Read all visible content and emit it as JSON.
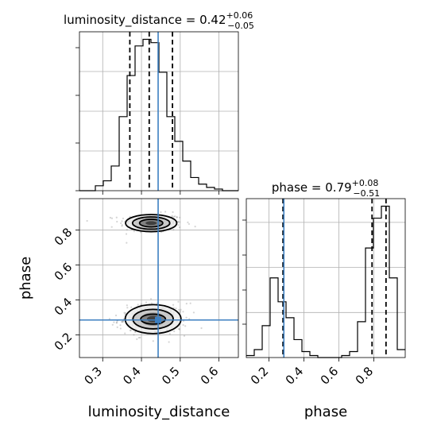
{
  "chart_data": {
    "type": "corner",
    "parameters": [
      "luminosity_distance",
      "phase"
    ],
    "colors": {
      "truth": "#3d7fc1",
      "histogram": "#000000",
      "density": "#000000",
      "scatter": "#888888"
    },
    "titles": {
      "luminosity_distance": {
        "prefix": "luminosity_distance = ",
        "value": "0.42",
        "plus": "+0.06",
        "minus": "−0.05"
      },
      "phase": {
        "prefix": "phase = ",
        "value": "0.79",
        "plus": "+0.08",
        "minus": "−0.51"
      }
    },
    "axis_labels": {
      "x_left": "luminosity_distance",
      "x_right": "phase",
      "y_left": "phase"
    },
    "luminosity_distance_ticks": [
      "0.3",
      "0.4",
      "0.5",
      "0.6"
    ],
    "phase_ticks": [
      "0.2",
      "0.4",
      "0.6",
      "0.8"
    ],
    "luminosity_distance_range": [
      0.24,
      0.65
    ],
    "phase_range": [
      0.07,
      0.98
    ],
    "truth": {
      "luminosity_distance": 0.443,
      "phase": 0.285
    },
    "quantiles": {
      "luminosity_distance": [
        0.37,
        0.42,
        0.48
      ],
      "phase": [
        0.28,
        0.79,
        0.87
      ]
    },
    "hist_luminosity_distance": {
      "bin_edges": [
        0.24,
        0.2605,
        0.281,
        0.3015,
        0.322,
        0.3425,
        0.363,
        0.3835,
        0.404,
        0.4245,
        0.445,
        0.4655,
        0.486,
        0.5065,
        0.527,
        0.5475,
        0.568,
        0.5885,
        0.609,
        0.6295,
        0.65
      ],
      "counts": [
        0,
        0,
        3,
        6,
        15,
        45,
        70,
        88,
        92,
        90,
        72,
        45,
        30,
        18,
        8,
        4,
        2,
        1,
        0,
        0
      ]
    },
    "hist_phase": {
      "bin_edges": [
        0.07,
        0.1155,
        0.161,
        0.2065,
        0.252,
        0.2975,
        0.343,
        0.3885,
        0.434,
        0.4795,
        0.525,
        0.5705,
        0.616,
        0.6615,
        0.707,
        0.7525,
        0.798,
        0.8435,
        0.889,
        0.9345,
        0.98
      ],
      "counts": [
        1,
        4,
        16,
        40,
        28,
        20,
        9,
        3,
        1,
        0,
        0,
        0,
        1,
        3,
        18,
        55,
        70,
        76,
        40,
        4
      ]
    },
    "contours_2d": [
      {
        "center": [
          0.425,
          0.84
        ],
        "radii": [
          [
            0.03,
            0.022
          ],
          [
            0.048,
            0.035
          ],
          [
            0.066,
            0.049
          ]
        ]
      },
      {
        "center": [
          0.43,
          0.29
        ],
        "radii": [
          [
            0.032,
            0.028
          ],
          [
            0.052,
            0.056
          ],
          [
            0.072,
            0.083
          ]
        ]
      }
    ],
    "grid": true
  }
}
